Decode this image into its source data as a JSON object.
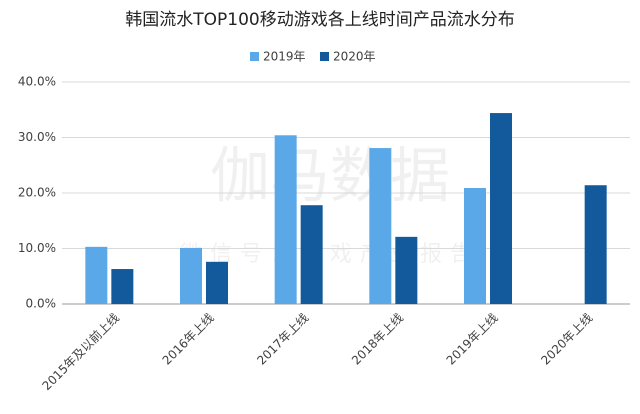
{
  "chart_data": {
    "type": "bar",
    "title": "韩国流水TOP100移动游戏各上线时间产品流水分布",
    "categories": [
      "2015年及以前上线",
      "2016年上线",
      "2017年上线",
      "2018年上线",
      "2019年上线",
      "2020年上线"
    ],
    "series": [
      {
        "name": "2019年",
        "color": "#5ba8e8",
        "values": [
          10.3,
          10.1,
          30.4,
          28.1,
          20.9,
          null
        ]
      },
      {
        "name": "2020年",
        "color": "#125a9c",
        "values": [
          6.3,
          7.6,
          17.8,
          12.1,
          34.4,
          21.4
        ]
      }
    ],
    "ylim": [
      0,
      40
    ],
    "yticks": [
      {
        "value": 0,
        "label": "0.0%"
      },
      {
        "value": 10,
        "label": "10.0%"
      },
      {
        "value": 20,
        "label": "20.0%"
      },
      {
        "value": 30,
        "label": "30.0%"
      },
      {
        "value": 40,
        "label": "40.0%"
      }
    ],
    "grid": true,
    "legend": "top",
    "watermark": "伽马数据",
    "watermark_sub": "微信号：游戏产业报告"
  }
}
